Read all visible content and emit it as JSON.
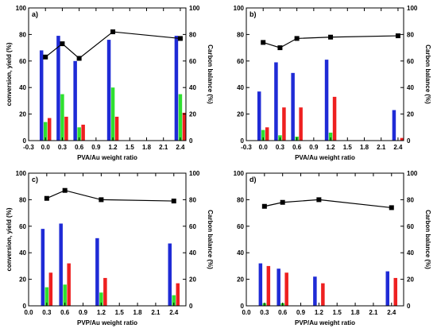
{
  "colors": {
    "blue": "#1f2bd6",
    "green": "#2fe02f",
    "red": "#ee2020",
    "line": "#000000"
  },
  "chart_data": [
    {
      "type": "bar",
      "panel_label": "a)",
      "xlabel": "PVA/Au weight ratio",
      "ylabel": "conversion, yield (%)",
      "y2label": "Carbon balance (%)",
      "xlim": [
        -0.3,
        2.5
      ],
      "ylim": [
        0,
        100
      ],
      "y2lim": [
        0,
        100
      ],
      "xticks": [
        "-0.3",
        "0.0",
        "0.3",
        "0.6",
        "0.9",
        "1.2",
        "1.5",
        "1.8",
        "2.1",
        "2.4"
      ],
      "yticks": [
        "0",
        "20",
        "40",
        "60",
        "80",
        "100"
      ],
      "y2ticks": [
        "0",
        "20",
        "40",
        "60",
        "80",
        "100"
      ],
      "x": [
        0,
        0.3,
        0.6,
        1.2,
        2.4
      ],
      "series": [
        {
          "kind": "bar",
          "color": "blue",
          "values": [
            68,
            79,
            60,
            76,
            79
          ]
        },
        {
          "kind": "bar",
          "color": "green",
          "values": [
            14,
            35,
            10,
            40,
            35
          ]
        },
        {
          "kind": "bar",
          "color": "red",
          "values": [
            17,
            18,
            12,
            18,
            21
          ]
        },
        {
          "kind": "line",
          "axis": "right",
          "values": [
            63,
            73,
            62,
            82,
            77
          ]
        }
      ]
    },
    {
      "type": "bar",
      "panel_label": "b)",
      "xlabel": "PVA/Au weight ratio",
      "ylabel": "",
      "y2label": "Carbon balance (%)",
      "xlim": [
        -0.3,
        2.5
      ],
      "ylim": [
        0,
        100
      ],
      "y2lim": [
        0,
        100
      ],
      "xticks": [
        "-0.3",
        "0.0",
        "0.3",
        "0.6",
        "0.9",
        "1.2",
        "1.5",
        "1.8",
        "2.1",
        "2.4"
      ],
      "yticks": [
        "0",
        "20",
        "40",
        "60",
        "80",
        "100"
      ],
      "y2ticks": [
        "0",
        "20",
        "40",
        "60",
        "80",
        "100"
      ],
      "x": [
        0,
        0.3,
        0.6,
        1.2,
        2.4
      ],
      "series": [
        {
          "kind": "bar",
          "color": "blue",
          "values": [
            37,
            59,
            51,
            61,
            23
          ]
        },
        {
          "kind": "bar",
          "color": "green",
          "values": [
            8,
            4,
            3,
            6,
            0
          ]
        },
        {
          "kind": "bar",
          "color": "red",
          "values": [
            10,
            25,
            25,
            33,
            2
          ]
        },
        {
          "kind": "line",
          "axis": "right",
          "values": [
            74,
            70,
            77,
            78,
            79
          ]
        }
      ]
    },
    {
      "type": "bar",
      "panel_label": "c)",
      "xlabel": "PVP/Au weight ratio",
      "ylabel": "conversion, yield (%)",
      "y2label": "Carbon balance (%)",
      "xlim": [
        0,
        2.6
      ],
      "ylim": [
        0,
        100
      ],
      "y2lim": [
        0,
        100
      ],
      "xticks": [
        "0.0",
        "0.3",
        "0.6",
        "0.9",
        "1.2",
        "1.5",
        "1.8",
        "2.1",
        "2.4"
      ],
      "yticks": [
        "0",
        "20",
        "40",
        "60",
        "80",
        "100"
      ],
      "y2ticks": [
        "0",
        "20",
        "40",
        "60",
        "80",
        "100"
      ],
      "x": [
        0.3,
        0.6,
        1.2,
        2.4
      ],
      "series": [
        {
          "kind": "bar",
          "color": "blue",
          "values": [
            58,
            62,
            51,
            47
          ]
        },
        {
          "kind": "bar",
          "color": "green",
          "values": [
            14,
            16,
            10,
            8
          ]
        },
        {
          "kind": "bar",
          "color": "red",
          "values": [
            25,
            32,
            21,
            17
          ]
        },
        {
          "kind": "line",
          "axis": "right",
          "values": [
            81,
            87,
            80,
            79
          ]
        }
      ]
    },
    {
      "type": "bar",
      "panel_label": "d)",
      "xlabel": "PVP/Au weight ratio",
      "ylabel": "",
      "y2label": "Carbon balance (%)",
      "xlim": [
        0,
        2.6
      ],
      "ylim": [
        0,
        100
      ],
      "y2lim": [
        0,
        100
      ],
      "xticks": [
        "0.0",
        "0.3",
        "0.6",
        "0.9",
        "1.2",
        "1.5",
        "1.8",
        "2.1",
        "2.4"
      ],
      "yticks": [
        "0",
        "20",
        "40",
        "60",
        "80",
        "100"
      ],
      "y2ticks": [
        "0",
        "20",
        "40",
        "60",
        "80",
        "100"
      ],
      "x": [
        0.3,
        0.6,
        1.2,
        2.4
      ],
      "series": [
        {
          "kind": "bar",
          "color": "blue",
          "values": [
            32,
            28,
            22,
            26
          ]
        },
        {
          "kind": "bar",
          "color": "green",
          "values": [
            2,
            2,
            0,
            0
          ]
        },
        {
          "kind": "bar",
          "color": "red",
          "values": [
            30,
            25,
            17,
            21
          ]
        },
        {
          "kind": "line",
          "axis": "right",
          "values": [
            75,
            78,
            80,
            74
          ]
        }
      ]
    }
  ]
}
